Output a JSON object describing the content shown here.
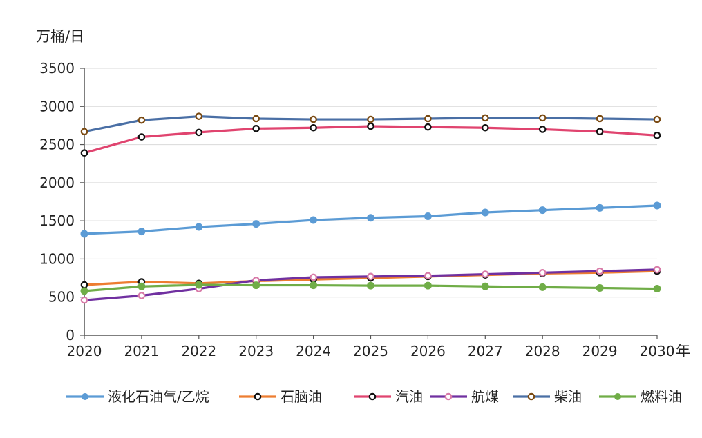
{
  "chart_data": {
    "type": "line",
    "title": "",
    "ylabel": "万桶/日",
    "xlabel": "年",
    "ylim": [
      0,
      3500
    ],
    "yticks": [
      0,
      500,
      1000,
      1500,
      2000,
      2500,
      3000,
      3500
    ],
    "grid": true,
    "legend": "bottom",
    "categories": [
      "2020",
      "2021",
      "2022",
      "2023",
      "2024",
      "2025",
      "2026",
      "2027",
      "2028",
      "2029",
      "2030"
    ],
    "series": [
      {
        "name": "液化石油气/乙烷",
        "color": "#5b9bd5",
        "marker": "filled",
        "values": [
          1330,
          1360,
          1420,
          1460,
          1510,
          1540,
          1560,
          1610,
          1640,
          1670,
          1700
        ]
      },
      {
        "name": "石脑油",
        "color": "#ed7d31",
        "marker": "ring",
        "markerStroke": "#111111",
        "values": [
          660,
          700,
          680,
          710,
          730,
          750,
          770,
          790,
          810,
          820,
          840
        ]
      },
      {
        "name": "汽油",
        "color": "#e0446f",
        "marker": "ring",
        "markerStroke": "#111111",
        "values": [
          2390,
          2600,
          2660,
          2710,
          2720,
          2740,
          2730,
          2720,
          2700,
          2670,
          2620
        ]
      },
      {
        "name": "航煤",
        "color": "#7030a0",
        "marker": "ring",
        "markerStroke": "#d87aa8",
        "values": [
          460,
          520,
          610,
          720,
          760,
          770,
          780,
          800,
          820,
          840,
          860
        ]
      },
      {
        "name": "柴油",
        "color": "#4a6fa5",
        "marker": "ring",
        "markerStroke": "#7a4a12",
        "values": [
          2670,
          2820,
          2870,
          2840,
          2830,
          2830,
          2840,
          2850,
          2850,
          2840,
          2830
        ]
      },
      {
        "name": "燃料油",
        "color": "#70ad47",
        "marker": "filled",
        "values": [
          580,
          640,
          660,
          655,
          655,
          650,
          650,
          640,
          630,
          620,
          610
        ]
      }
    ]
  }
}
